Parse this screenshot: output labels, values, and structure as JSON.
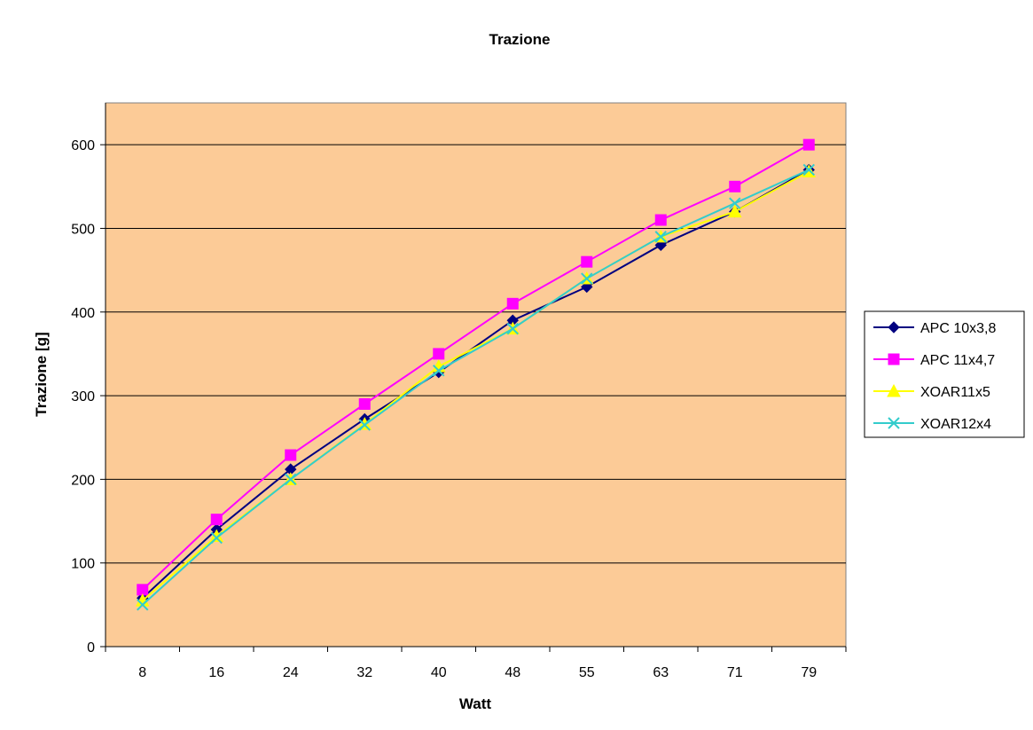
{
  "chart_data": {
    "type": "line",
    "title": "Trazione",
    "xlabel": "Watt",
    "ylabel": "Trazione [g]",
    "categories": [
      "8",
      "16",
      "24",
      "32",
      "40",
      "48",
      "55",
      "63",
      "71",
      "79"
    ],
    "ylim": [
      0,
      650
    ],
    "yticks": [
      0,
      100,
      200,
      300,
      400,
      500,
      600
    ],
    "grid": true,
    "legend_position": "right",
    "plot_background": "#FCCB97",
    "series": [
      {
        "name": "APC 10x3,8",
        "color": "#000080",
        "marker": "diamond",
        "values": [
          58,
          140,
          212,
          272,
          328,
          390,
          430,
          480,
          520,
          570
        ]
      },
      {
        "name": "APC 11x4,7",
        "color": "#FF00FF",
        "marker": "square",
        "values": [
          68,
          152,
          229,
          290,
          350,
          410,
          460,
          510,
          550,
          600
        ]
      },
      {
        "name": "XOAR11x5",
        "color": "#FFFF00",
        "marker": "triangle",
        "values": [
          55,
          132,
          200,
          266,
          335,
          380,
          440,
          490,
          520,
          568
        ]
      },
      {
        "name": "XOAR12x4",
        "color": "#33CCCC",
        "marker": "x",
        "values": [
          50,
          130,
          200,
          265,
          330,
          380,
          440,
          490,
          530,
          570
        ]
      }
    ]
  }
}
